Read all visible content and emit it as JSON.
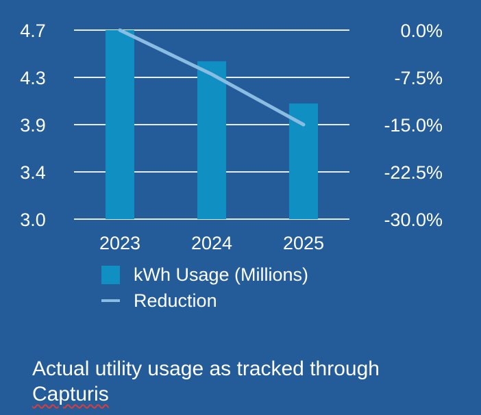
{
  "chart_data": {
    "type": "bar",
    "title": "",
    "categories": [
      "2023",
      "2024",
      "2025"
    ],
    "series": [
      {
        "name": "kWh Usage (Millions)",
        "kind": "bar",
        "axis": "left",
        "values": [
          4.7,
          4.42,
          4.04
        ]
      },
      {
        "name": "Reduction",
        "kind": "line",
        "axis": "right",
        "values": [
          0.0,
          -7.0,
          -15.0
        ]
      }
    ],
    "left_axis": {
      "ticks": [
        "4.7",
        "4.3",
        "3.9",
        "3.4",
        "3.0"
      ],
      "ylim": [
        3.0,
        4.7
      ]
    },
    "right_axis": {
      "ticks": [
        "0.0%",
        "-7.5%",
        "-15.0%",
        "-22.5%",
        "-30.0%"
      ],
      "ylim": [
        -30.0,
        0.0
      ]
    },
    "grid": true,
    "legend_position": "bottom",
    "colors": {
      "bar": "#0f8fc2",
      "line": "#8bbde3",
      "grid": "#e6ecf3",
      "background": "#235c99"
    }
  },
  "caption": {
    "line1": "Actual utility usage as tracked through",
    "line2": "Capturis"
  }
}
